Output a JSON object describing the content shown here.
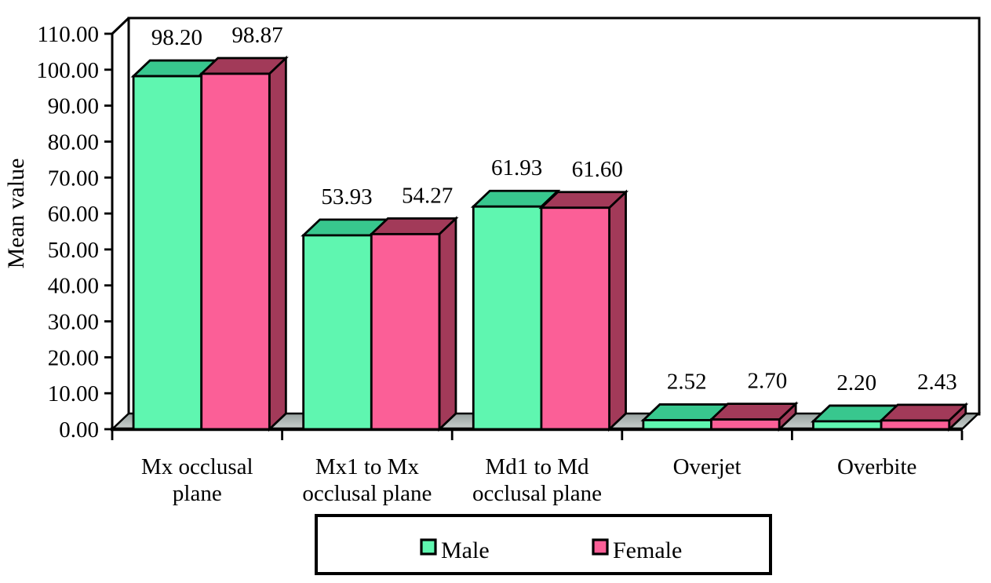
{
  "chart_data": {
    "type": "bar",
    "style": "3d-clustered-column",
    "title": "",
    "xlabel": "",
    "ylabel": "Mean value",
    "ylim": [
      0,
      110
    ],
    "ytick_step": 10,
    "ytick_decimals": 2,
    "grid": false,
    "categories": [
      "Mx occlusal plane",
      "Mx1 to Mx occlusal plane",
      "Md1 to Md occlusal plane",
      "Overjet",
      "Overbite"
    ],
    "category_lines": [
      [
        "Mx occlusal",
        "plane"
      ],
      [
        "Mx1 to Mx",
        "occlusal plane"
      ],
      [
        "Md1 to Md",
        "occlusal plane"
      ],
      [
        "Overjet"
      ],
      [
        "Overbite"
      ]
    ],
    "series": [
      {
        "name": "Male",
        "values": [
          98.2,
          53.93,
          61.93,
          2.52,
          2.2
        ],
        "labels": [
          "98.20",
          "53.93",
          "61.93",
          "2.52",
          "2.20"
        ],
        "front_color": "#5FF6B0",
        "shade_color": "#38C78E"
      },
      {
        "name": "Female",
        "values": [
          98.87,
          54.27,
          61.6,
          2.7,
          2.43
        ],
        "labels": [
          "98.87",
          "54.27",
          "61.60",
          "2.70",
          "2.43"
        ],
        "front_color": "#FB5F97",
        "shade_color": "#A23A59"
      }
    ],
    "legend": {
      "position": "bottom",
      "items": [
        "Male",
        "Female"
      ]
    },
    "colors": {
      "wall": "#FFFFFF",
      "outline": "#000000",
      "floor_top": "#98A2A0",
      "floor_bottom": "#CBD1CF"
    }
  }
}
